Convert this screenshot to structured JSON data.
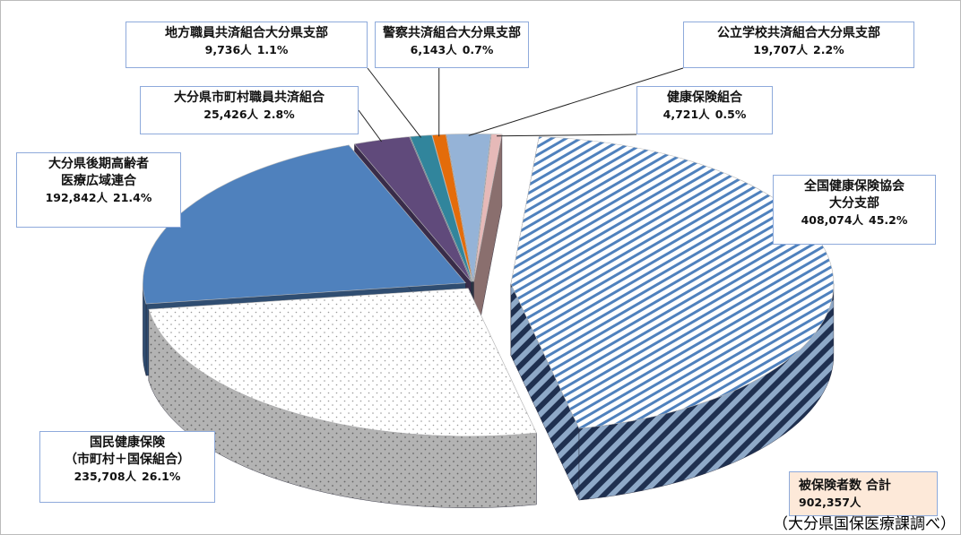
{
  "chart_data": {
    "type": "pie",
    "categories": [
      "全国健康保険協会\n大分支部",
      "国民健康保険\n（市町村＋国保組合）",
      "大分県後期高齢者\n医療広域連合",
      "大分県市町村職員共済組合",
      "地方職員共済組合大分県支部",
      "警察共済組合大分県支部",
      "公立学校共済組合大分県支部",
      "健康保険組合"
    ],
    "values": [
      408074,
      235708,
      192842,
      25426,
      9736,
      6143,
      19707,
      4721
    ],
    "value_labels": [
      "408,074人",
      "235,708人",
      "192,842人",
      "25,426人",
      "9,736人",
      "6,143人",
      "19,707人",
      "4,721人"
    ],
    "percents": [
      45.2,
      26.1,
      21.4,
      2.8,
      1.1,
      0.7,
      2.2,
      0.5
    ],
    "percent_labels": [
      "45.2%",
      "26.1%",
      "21.4%",
      "2.8%",
      "1.1%",
      "0.7%",
      "2.2%",
      "0.5%"
    ],
    "colors": [
      "#4f81bd",
      "#d9d9d9",
      "#4f81bd",
      "#604a7b",
      "#31859c",
      "#e46c0a",
      "#95b3d7",
      "#e6b9b8"
    ],
    "patterns": [
      "stripes",
      "dots",
      null,
      null,
      null,
      null,
      null,
      null
    ],
    "total_label": "被保険者数  合計",
    "total": 902357,
    "total_value_label": "902,357人",
    "source": "（大分県国保医療課調べ）"
  }
}
